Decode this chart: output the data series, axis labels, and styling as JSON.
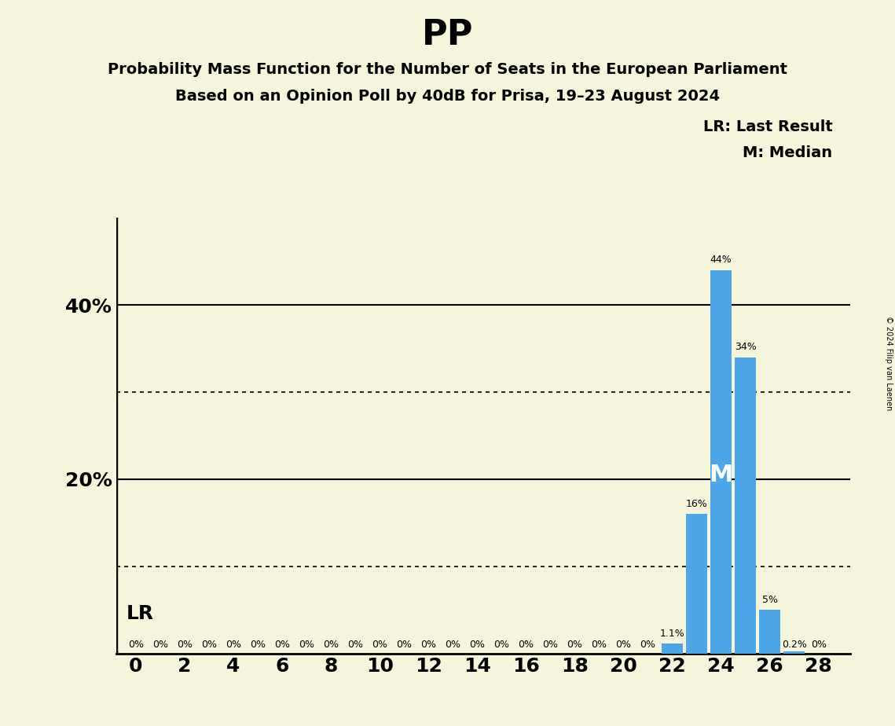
{
  "title": "PP",
  "subtitle1": "Probability Mass Function for the Number of Seats in the European Parliament",
  "subtitle2": "Based on an Opinion Poll by 40dB for Prisa, 19–23 August 2024",
  "copyright": "© 2024 Filip van Laenen",
  "background_color": "#f5f5dc",
  "bar_color": "#4da6e8",
  "seats": [
    0,
    1,
    2,
    3,
    4,
    5,
    6,
    7,
    8,
    9,
    10,
    11,
    12,
    13,
    14,
    15,
    16,
    17,
    18,
    19,
    20,
    21,
    22,
    23,
    24,
    25,
    26,
    27,
    28
  ],
  "probabilities": [
    0.0,
    0.0,
    0.0,
    0.0,
    0.0,
    0.0,
    0.0,
    0.0,
    0.0,
    0.0,
    0.0,
    0.0,
    0.0,
    0.0,
    0.0,
    0.0,
    0.0,
    0.0,
    0.0,
    0.0,
    0.0,
    0.0,
    1.1,
    16.0,
    44.0,
    34.0,
    5.0,
    0.2,
    0.0
  ],
  "labels": [
    "0%",
    "0%",
    "0%",
    "0%",
    "0%",
    "0%",
    "0%",
    "0%",
    "0%",
    "0%",
    "0%",
    "0%",
    "0%",
    "0%",
    "0%",
    "0%",
    "0%",
    "0%",
    "0%",
    "0%",
    "0%",
    "0%",
    "1.1%",
    "16%",
    "44%",
    "34%",
    "5%",
    "0.2%",
    "0%"
  ],
  "last_result_seat": 22,
  "median_seat": 24,
  "ylim": [
    0,
    50
  ],
  "solid_ylines": [
    20,
    40
  ],
  "dotted_ylines": [
    10,
    30
  ],
  "xlabel_seats": [
    0,
    2,
    4,
    6,
    8,
    10,
    12,
    14,
    16,
    18,
    20,
    22,
    24,
    26,
    28
  ],
  "legend_lr": "LR: Last Result",
  "legend_m": "M: Median",
  "lr_label": "LR",
  "m_label": "M"
}
